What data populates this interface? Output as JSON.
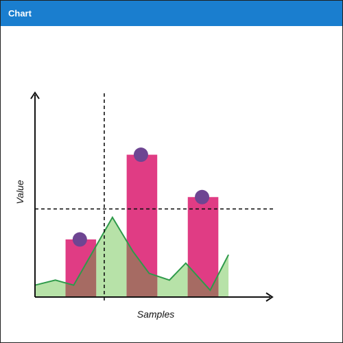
{
  "window": {
    "title": "Chart"
  },
  "colors": {
    "titlebar": "#1a7ecf",
    "bar": "#e03c84",
    "area_fill": "#b7e2a8",
    "area_line": "#2e9a4a",
    "marker": "#6e4592",
    "overlap": "#a66b63"
  },
  "chart_data": {
    "type": "bar",
    "title": "",
    "xlabel": "Samples",
    "ylabel": "Value",
    "grid": false,
    "legend": "none",
    "ylim": [
      0,
      100
    ],
    "xlim": [
      0,
      10
    ],
    "bars": [
      {
        "x_start": 1.5,
        "x_end": 3.0,
        "value": 34
      },
      {
        "x_start": 4.5,
        "x_end": 6.0,
        "value": 84
      },
      {
        "x_start": 7.5,
        "x_end": 9.0,
        "value": 59
      }
    ],
    "markers": [
      {
        "x": 2.2,
        "y": 34
      },
      {
        "x": 5.2,
        "y": 84
      },
      {
        "x": 8.2,
        "y": 59
      }
    ],
    "area_series": {
      "x": [
        0,
        1.0,
        1.9,
        3.8,
        4.8,
        5.6,
        6.6,
        7.4,
        8.6,
        9.5
      ],
      "y": [
        7,
        10,
        7,
        47,
        27,
        14,
        10,
        20,
        4,
        25
      ]
    },
    "reference_lines": {
      "horizontal_y": 52,
      "vertical_x": 3.4
    }
  }
}
